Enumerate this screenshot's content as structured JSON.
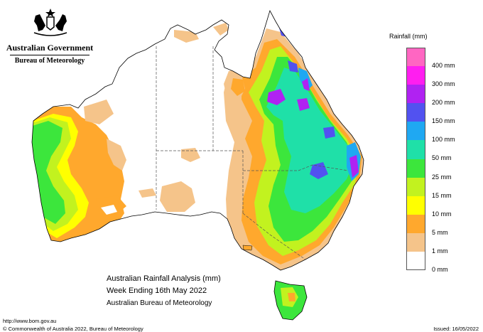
{
  "header": {
    "gov_title": "Australian Government",
    "agency": "Bureau of Meteorology"
  },
  "legend": {
    "title": "Rainfall (mm)",
    "items": [
      {
        "label": "400 mm",
        "color": "#ff66c2"
      },
      {
        "label": "300 mm",
        "color": "#ff1ef0"
      },
      {
        "label": "200 mm",
        "color": "#b022f2"
      },
      {
        "label": "150 mm",
        "color": "#5252f0"
      },
      {
        "label": "100 mm",
        "color": "#1fa8f2"
      },
      {
        "label": "50 mm",
        "color": "#1fe0a8"
      },
      {
        "label": "25 mm",
        "color": "#3ce63c"
      },
      {
        "label": "15 mm",
        "color": "#c2f21f"
      },
      {
        "label": "10 mm",
        "color": "#ffff00"
      },
      {
        "label": "5 mm",
        "color": "#ffa82d"
      },
      {
        "label": "1 mm",
        "color": "#f5c48a"
      },
      {
        "label": "0 mm",
        "color": "#ffffff"
      }
    ]
  },
  "map": {
    "outline_color": "#000000",
    "border_color": "#555555"
  },
  "captions": {
    "line1": "Australian Rainfall Analysis (mm)",
    "line2": "Week Ending 16th May 2022",
    "line3": "Australian Bureau of Meteorology"
  },
  "footer": {
    "url": "http://www.bom.gov.au",
    "copyright": "© Commonwealth of Australia 2022, Bureau of Meteorology",
    "issued": "Issued: 16/05/2022"
  }
}
